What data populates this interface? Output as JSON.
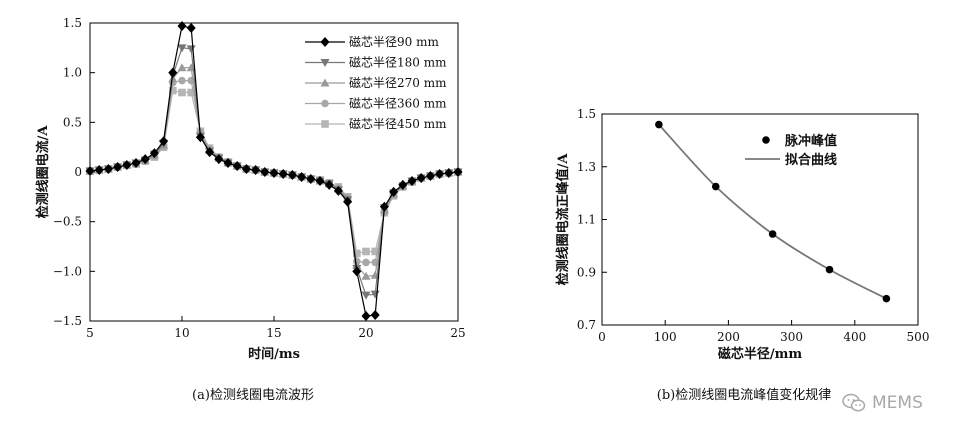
{
  "chart_data": [
    {
      "type": "line",
      "xlabel": "时间/ms",
      "ylabel": "检测线圈电流/A",
      "xlim": [
        5,
        25
      ],
      "ylim": [
        -1.5,
        1.5
      ],
      "xticks": [
        "5",
        "10",
        "15",
        "20",
        "25"
      ],
      "yticks": [
        "1.5",
        "1.0",
        "0.5",
        "0",
        "−0.5",
        "−1.0",
        "−1.5"
      ],
      "legend_position": "top-right",
      "caption": "(a)检测线圈电流波形",
      "x": [
        5.0,
        5.5,
        6.0,
        6.5,
        7.0,
        7.5,
        8.0,
        8.5,
        9.0,
        9.5,
        10.0,
        10.5,
        11.0,
        11.5,
        12.0,
        12.5,
        13.0,
        13.5,
        14.0,
        14.5,
        15.0,
        15.5,
        16.0,
        16.5,
        17.0,
        17.5,
        18.0,
        18.5,
        19.0,
        19.5,
        20.0,
        20.5,
        21.0,
        21.5,
        22.0,
        22.5,
        23.0,
        23.5,
        24.0,
        24.5,
        25.0
      ],
      "series": [
        {
          "name": "磁芯半径90 mm",
          "marker": "diamond",
          "color": "#000000",
          "values": [
            0.01,
            0.02,
            0.03,
            0.05,
            0.07,
            0.09,
            0.13,
            0.19,
            0.31,
            1.0,
            1.47,
            1.45,
            0.35,
            0.2,
            0.13,
            0.09,
            0.06,
            0.03,
            0.02,
            0.0,
            -0.01,
            -0.02,
            -0.03,
            -0.05,
            -0.07,
            -0.09,
            -0.13,
            -0.19,
            -0.3,
            -1.0,
            -1.45,
            -1.44,
            -0.35,
            -0.2,
            -0.13,
            -0.09,
            -0.06,
            -0.04,
            -0.02,
            -0.01,
            0.0
          ]
        },
        {
          "name": "磁芯半径180 mm",
          "marker": "triangle-down",
          "color": "#777777",
          "values": [
            0.01,
            0.02,
            0.03,
            0.05,
            0.07,
            0.09,
            0.12,
            0.18,
            0.29,
            0.97,
            1.25,
            1.24,
            0.36,
            0.21,
            0.14,
            0.09,
            0.06,
            0.03,
            0.02,
            0.0,
            -0.01,
            -0.02,
            -0.03,
            -0.05,
            -0.07,
            -0.09,
            -0.12,
            -0.18,
            -0.28,
            -0.97,
            -1.24,
            -1.23,
            -0.36,
            -0.21,
            -0.14,
            -0.09,
            -0.06,
            -0.04,
            -0.02,
            -0.01,
            0.0
          ]
        },
        {
          "name": "磁芯半径270 mm",
          "marker": "triangle-up",
          "color": "#9a9a9a",
          "values": [
            0.01,
            0.02,
            0.03,
            0.05,
            0.07,
            0.09,
            0.12,
            0.17,
            0.27,
            0.94,
            1.05,
            1.05,
            0.38,
            0.22,
            0.14,
            0.09,
            0.06,
            0.03,
            0.02,
            0.0,
            -0.01,
            -0.02,
            -0.03,
            -0.05,
            -0.07,
            -0.09,
            -0.12,
            -0.17,
            -0.27,
            -0.94,
            -1.05,
            -1.04,
            -0.38,
            -0.22,
            -0.14,
            -0.09,
            -0.06,
            -0.04,
            -0.02,
            -0.01,
            0.0
          ]
        },
        {
          "name": "磁芯半径360 mm",
          "marker": "circle",
          "color": "#a8a8a8",
          "values": [
            0.01,
            0.02,
            0.03,
            0.05,
            0.07,
            0.09,
            0.11,
            0.16,
            0.26,
            0.9,
            0.92,
            0.92,
            0.4,
            0.23,
            0.15,
            0.1,
            0.06,
            0.03,
            0.02,
            0.0,
            -0.01,
            -0.02,
            -0.03,
            -0.05,
            -0.07,
            -0.09,
            -0.11,
            -0.16,
            -0.26,
            -0.9,
            -0.91,
            -0.91,
            -0.4,
            -0.23,
            -0.15,
            -0.1,
            -0.06,
            -0.04,
            -0.02,
            -0.01,
            0.0
          ]
        },
        {
          "name": "磁芯半径450 mm",
          "marker": "square",
          "color": "#b5b5b5",
          "values": [
            0.01,
            0.02,
            0.03,
            0.05,
            0.07,
            0.08,
            0.11,
            0.15,
            0.25,
            0.82,
            0.8,
            0.8,
            0.41,
            0.24,
            0.15,
            0.1,
            0.06,
            0.03,
            0.02,
            0.0,
            -0.01,
            -0.02,
            -0.03,
            -0.05,
            -0.07,
            -0.08,
            -0.11,
            -0.15,
            -0.25,
            -0.82,
            -0.8,
            -0.8,
            -0.41,
            -0.24,
            -0.15,
            -0.1,
            -0.06,
            -0.04,
            -0.02,
            -0.01,
            0.0
          ]
        }
      ]
    },
    {
      "type": "scatter",
      "xlabel": "磁芯半径/mm",
      "ylabel": "检测线圈电流正峰值/A",
      "xlim": [
        0,
        500
      ],
      "ylim": [
        0.7,
        1.5
      ],
      "xticks": [
        "0",
        "100",
        "200",
        "300",
        "400",
        "500"
      ],
      "yticks": [
        "1.5",
        "1.3",
        "1.1",
        "0.9",
        "0.7"
      ],
      "legend_position": "top-right",
      "caption": "(b)检测线圈电流峰值变化规律",
      "series": [
        {
          "name": "脉冲峰值",
          "marker": "circle",
          "color": "#000000",
          "x": [
            90,
            180,
            270,
            360,
            450
          ],
          "values": [
            1.46,
            1.225,
            1.045,
            0.91,
            0.8
          ]
        },
        {
          "name": "拟合曲线",
          "marker": "line",
          "color": "#777777",
          "x": [
            90,
            180,
            270,
            360,
            450
          ],
          "values": [
            1.46,
            1.225,
            1.045,
            0.91,
            0.8
          ]
        }
      ]
    }
  ],
  "watermark": {
    "text": "MEMS",
    "icon": "wechat-icon"
  }
}
